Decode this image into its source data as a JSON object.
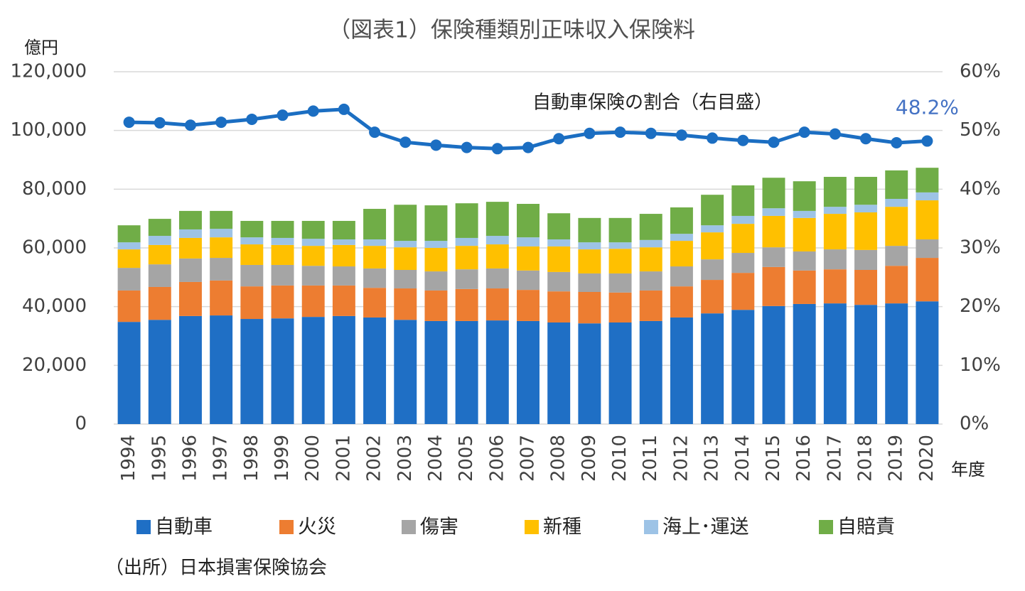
{
  "chart_data": {
    "type": "bar",
    "stacked": true,
    "title": "（図表1）保険種類別正味収入保険料",
    "y_label": "億円",
    "x_label": "年度",
    "source": "（出所）日本損害保険協会",
    "categories": [
      "1994",
      "1995",
      "1996",
      "1997",
      "1998",
      "1999",
      "2000",
      "2001",
      "2002",
      "2003",
      "2004",
      "2005",
      "2006",
      "2007",
      "2008",
      "2009",
      "2010",
      "2011",
      "2012",
      "2013",
      "2014",
      "2015",
      "2016",
      "2017",
      "2018",
      "2019",
      "2020"
    ],
    "ylim": [
      0,
      120000
    ],
    "yticks": [
      {
        "value": 0,
        "label": "0"
      },
      {
        "value": 20000,
        "label": "20,000"
      },
      {
        "value": 40000,
        "label": "40,000"
      },
      {
        "value": 60000,
        "label": "60,000"
      },
      {
        "value": 80000,
        "label": "80,000"
      },
      {
        "value": 100000,
        "label": "100,000"
      },
      {
        "value": 120000,
        "label": "120,000"
      }
    ],
    "y2lim": [
      0,
      60
    ],
    "y2ticks": [
      {
        "value": 0,
        "label": "0%"
      },
      {
        "value": 10,
        "label": "10%"
      },
      {
        "value": 20,
        "label": "20%"
      },
      {
        "value": 30,
        "label": "30%"
      },
      {
        "value": 40,
        "label": "40%"
      },
      {
        "value": 50,
        "label": "50%"
      },
      {
        "value": 60,
        "label": "60%"
      }
    ],
    "grid": true,
    "legend": "bottom",
    "series": [
      {
        "name": "自動車",
        "color": "#1F6FC5",
        "values": [
          34800,
          35500,
          36800,
          37000,
          35800,
          36000,
          36500,
          36800,
          36300,
          35500,
          35100,
          35100,
          35300,
          35100,
          34600,
          34300,
          34600,
          35100,
          36300,
          37700,
          38900,
          40200,
          40900,
          41100,
          40600,
          41100,
          41800
        ]
      },
      {
        "name": "火災",
        "color": "#ED7D31",
        "values": [
          10700,
          11200,
          11600,
          11900,
          11100,
          11200,
          10700,
          10400,
          10100,
          10700,
          10400,
          10900,
          10900,
          10600,
          10600,
          10700,
          10200,
          10400,
          10600,
          11400,
          12600,
          13300,
          11400,
          11600,
          11900,
          12800,
          14800
        ]
      },
      {
        "name": "傷害",
        "color": "#A5A5A5",
        "values": [
          7700,
          7700,
          8000,
          7700,
          7300,
          7000,
          6700,
          6500,
          6600,
          6300,
          6500,
          6700,
          6800,
          6600,
          6600,
          6300,
          6500,
          6500,
          6800,
          7000,
          6800,
          6700,
          6500,
          6800,
          6800,
          6800,
          6300
        ]
      },
      {
        "name": "新種",
        "color": "#FFC000",
        "values": [
          6300,
          6600,
          7000,
          7000,
          7000,
          6800,
          6800,
          7300,
          7700,
          7700,
          8000,
          8000,
          8200,
          8200,
          8700,
          8200,
          8400,
          8200,
          8700,
          9200,
          9900,
          10700,
          11400,
          12100,
          12800,
          13300,
          13300
        ]
      },
      {
        "name": "海上･運送",
        "color": "#9DC3E6",
        "values": [
          2400,
          3100,
          2900,
          2900,
          2400,
          2400,
          2400,
          1900,
          2200,
          2200,
          2400,
          2700,
          2900,
          3100,
          2400,
          2400,
          2200,
          2500,
          2400,
          2400,
          2700,
          2600,
          2400,
          2400,
          2600,
          2700,
          2700
        ]
      },
      {
        "name": "自賠責",
        "color": "#70AD47",
        "values": [
          5800,
          5800,
          6300,
          6100,
          5600,
          5800,
          6100,
          6300,
          10400,
          12300,
          12100,
          11800,
          11600,
          11400,
          8900,
          8300,
          8300,
          8900,
          9000,
          10400,
          10400,
          10400,
          10100,
          10200,
          9500,
          9700,
          8400
        ]
      },
      {
        "name": "自動車保険の割合（右目盛）",
        "type": "line",
        "axis": "y2",
        "color": "#1B6EC2",
        "values": [
          51.4,
          51.3,
          50.9,
          51.4,
          51.9,
          52.6,
          53.3,
          53.6,
          49.7,
          48.0,
          47.5,
          47.1,
          46.9,
          47.1,
          48.6,
          49.5,
          49.7,
          49.5,
          49.2,
          48.7,
          48.3,
          48.0,
          49.7,
          49.4,
          48.6,
          47.9,
          48.2
        ],
        "value_labels": [
          null,
          null,
          null,
          null,
          null,
          null,
          null,
          null,
          null,
          null,
          null,
          null,
          null,
          null,
          null,
          null,
          null,
          null,
          null,
          null,
          null,
          null,
          null,
          null,
          null,
          null,
          "48.2%"
        ],
        "label_color": "#4472C4"
      }
    ]
  }
}
